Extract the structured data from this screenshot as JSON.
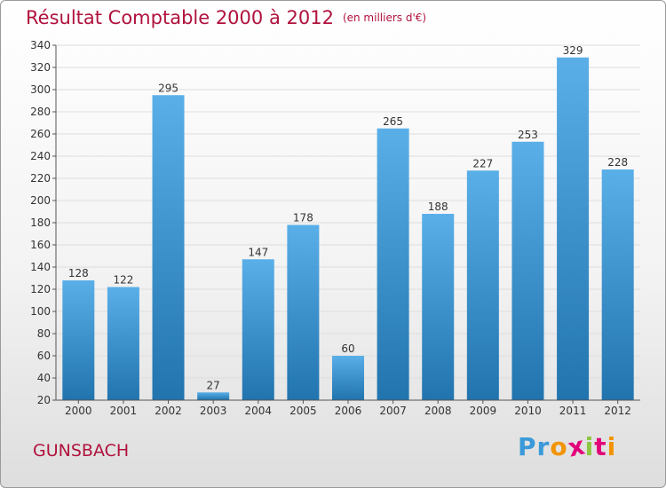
{
  "title": "Résultat Comptable 2000 à 2012",
  "subtitle": "(en milliers d'€)",
  "commune": "GUNSBACH",
  "logo": {
    "letters": [
      "P",
      "r",
      "o",
      "x",
      "i",
      "t",
      "i"
    ],
    "colors": [
      "#3a9ad9",
      "#3a9ad9",
      "#f29400",
      "#e2007a",
      "#8cc63f",
      "#e2007a",
      "#f29400"
    ]
  },
  "colors": {
    "title": "#b0123d",
    "bar_light": "#5aafe8",
    "bar_dark": "#2174ae",
    "grid": "#dddddd",
    "axis": "#555555"
  },
  "chart_data": {
    "type": "bar",
    "title": "Résultat Comptable 2000 à 2012",
    "xlabel": "",
    "ylabel": "",
    "categories": [
      "2000",
      "2001",
      "2002",
      "2003",
      "2004",
      "2005",
      "2006",
      "2007",
      "2008",
      "2009",
      "2010",
      "2011",
      "2012"
    ],
    "values": [
      128,
      122,
      295,
      27,
      147,
      178,
      60,
      265,
      188,
      227,
      253,
      329,
      228
    ],
    "ylim": [
      20,
      340
    ],
    "yticks": [
      20,
      40,
      60,
      80,
      100,
      120,
      140,
      160,
      180,
      200,
      220,
      240,
      260,
      280,
      300,
      320,
      340
    ],
    "grid": true
  }
}
